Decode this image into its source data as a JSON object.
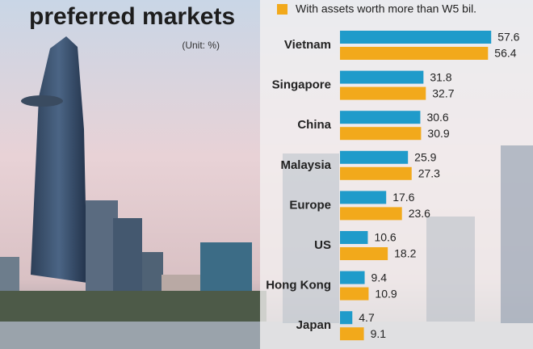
{
  "chart_data": {
    "type": "bar",
    "orientation": "horizontal",
    "title": "preferred markets",
    "unit": "(Unit: %)",
    "categories": [
      "Vietnam",
      "Singapore",
      "China",
      "Malaysia",
      "Europe",
      "US",
      "Hong Kong",
      "Japan"
    ],
    "series": [
      {
        "color": "#1f9bca",
        "values": [
          57.6,
          31.8,
          30.6,
          25.9,
          17.6,
          10.6,
          9.4,
          4.7
        ]
      },
      {
        "name": "With assets worth more than W5 bil.",
        "color": "#f2a91b",
        "values": [
          56.4,
          32.7,
          30.9,
          27.3,
          23.6,
          18.2,
          10.9,
          9.1
        ]
      }
    ]
  }
}
